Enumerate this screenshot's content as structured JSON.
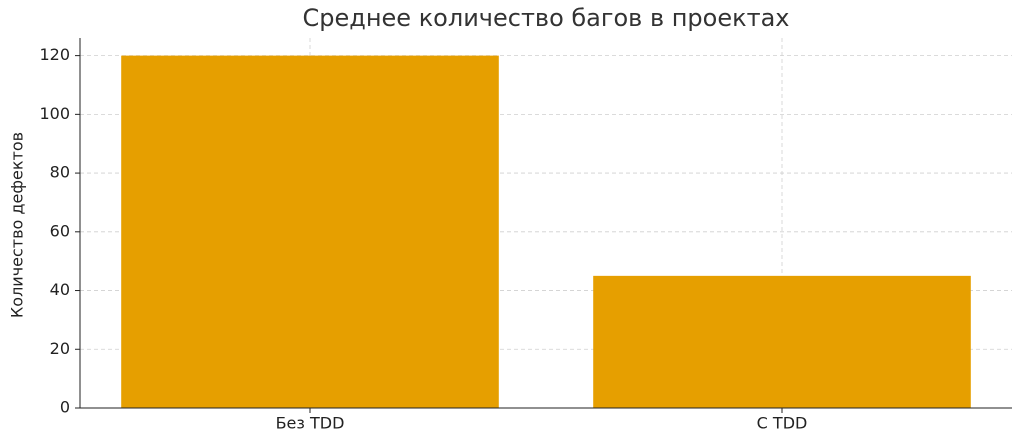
{
  "chart_data": {
    "type": "bar",
    "title": "Среднее количество багов в проектах",
    "y_label": "Количество дефектов",
    "categories": [
      "Без TDD",
      "С TDD"
    ],
    "values": [
      120,
      45
    ],
    "color": "#e69f00",
    "ylim": [
      0,
      126
    ],
    "yticks": [
      0,
      20,
      40,
      60,
      80,
      100,
      120
    ],
    "grid": true
  }
}
